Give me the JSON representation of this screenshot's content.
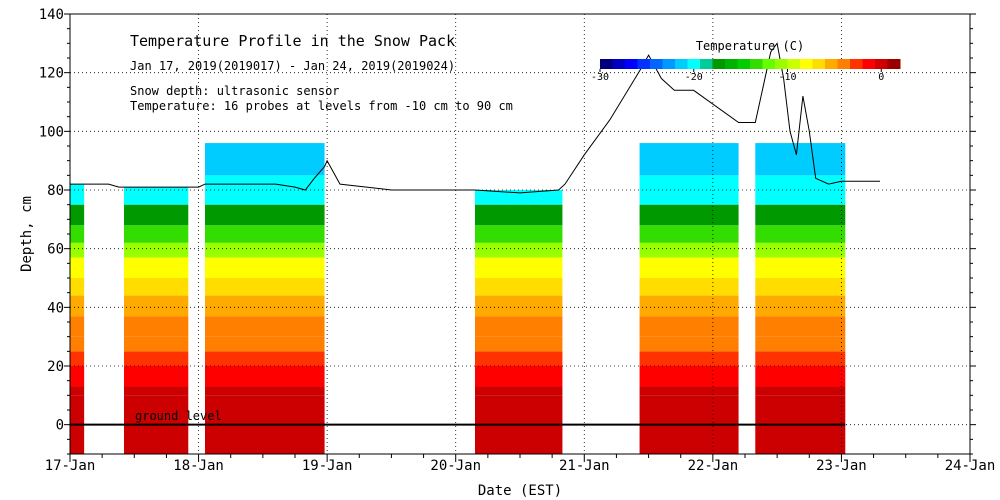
{
  "chart_data": {
    "type": "heatmap",
    "title": "Temperature Profile in the Snow Pack",
    "subtitle": "Jan 17, 2019(2019017) - Jan 24, 2019(2019024)",
    "notes": [
      "Snow depth: ultrasonic sensor",
      "Temperature: 16 probes at levels from -10 cm to 90 cm"
    ],
    "xlabel": "Date (EST)",
    "ylabel": "Depth, cm",
    "x_ticks": [
      "17-Jan",
      "18-Jan",
      "19-Jan",
      "20-Jan",
      "21-Jan",
      "22-Jan",
      "23-Jan",
      "24-Jan"
    ],
    "xlim": [
      0,
      7
    ],
    "ylim": [
      -10,
      140
    ],
    "y_ticks": [
      0,
      20,
      40,
      60,
      80,
      100,
      120,
      140
    ],
    "annotation": "ground level",
    "colorbar": {
      "label": "Temperature (C)",
      "range": [
        -30,
        2
      ],
      "tick_labels": [
        {
          "value": -30,
          "label": "-30"
        },
        {
          "value": -20,
          "label": "-20"
        },
        {
          "value": -10,
          "label": "-10"
        },
        {
          "value": 0,
          "label": "0"
        }
      ],
      "colors": [
        "#00007f",
        "#0000bf",
        "#0000ff",
        "#0033ff",
        "#0066ff",
        "#0099ff",
        "#00ccff",
        "#00ffff",
        "#00cc99",
        "#009900",
        "#00b300",
        "#00cc00",
        "#33dd00",
        "#66ff00",
        "#99ff00",
        "#ccff00",
        "#ffff00",
        "#ffdd00",
        "#ffaa00",
        "#ff8000",
        "#ff3300",
        "#ff0000",
        "#cc0000",
        "#990000"
      ]
    },
    "temperature_segments": [
      {
        "start": 0.0,
        "end": 0.11,
        "top": 82
      },
      {
        "start": 0.42,
        "end": 0.92,
        "top": 81
      },
      {
        "start": 1.05,
        "end": 1.98,
        "top": 96
      },
      {
        "start": 3.15,
        "end": 3.83,
        "top": 80
      },
      {
        "start": 4.43,
        "end": 5.2,
        "top": 96
      },
      {
        "start": 5.33,
        "end": 6.03,
        "top": 96
      }
    ],
    "temperature_bands": [
      {
        "bottom": -10,
        "top": 10,
        "temp": 0.5
      },
      {
        "bottom": 10,
        "top": 13,
        "temp": -0.3
      },
      {
        "bottom": 13,
        "top": 20,
        "temp": -1.5
      },
      {
        "bottom": 20,
        "top": 25,
        "temp": -2.5
      },
      {
        "bottom": 25,
        "top": 30,
        "temp": -3.5
      },
      {
        "bottom": 30,
        "top": 37,
        "temp": -4.5
      },
      {
        "bottom": 37,
        "top": 44,
        "temp": -5.5
      },
      {
        "bottom": 44,
        "top": 50,
        "temp": -7
      },
      {
        "bottom": 50,
        "top": 57,
        "temp": -8.5
      },
      {
        "bottom": 57,
        "top": 62,
        "temp": -11
      },
      {
        "bottom": 62,
        "top": 68,
        "temp": -13
      },
      {
        "bottom": 68,
        "top": 75,
        "temp": -17
      },
      {
        "bottom": 75,
        "top": 85,
        "temp": -20
      },
      {
        "bottom": 85,
        "top": 96,
        "temp": -22
      }
    ],
    "snow_depth_series": {
      "name": "Snow depth",
      "x": [
        0.0,
        0.3,
        0.38,
        0.42,
        0.6,
        0.92,
        1.0,
        1.05,
        1.4,
        1.6,
        1.75,
        1.83,
        1.9,
        1.98,
        2.0,
        2.1,
        2.5,
        3.0,
        3.15,
        3.5,
        3.8,
        3.85,
        4.0,
        4.2,
        4.45,
        4.5,
        4.6,
        4.7,
        4.85,
        5.2,
        5.33,
        5.45,
        5.5,
        5.55,
        5.6,
        5.65,
        5.7,
        5.75,
        5.8,
        5.9,
        6.0,
        6.3
      ],
      "y": [
        82,
        82,
        81,
        81,
        81,
        81,
        81,
        82,
        82,
        82,
        81,
        80,
        84,
        88,
        90,
        82,
        80,
        80,
        80,
        79,
        80,
        82,
        92,
        104,
        122,
        126,
        118,
        114,
        114,
        103,
        103,
        127,
        130,
        118,
        100,
        92,
        112,
        100,
        84,
        82,
        83,
        83
      ]
    }
  }
}
